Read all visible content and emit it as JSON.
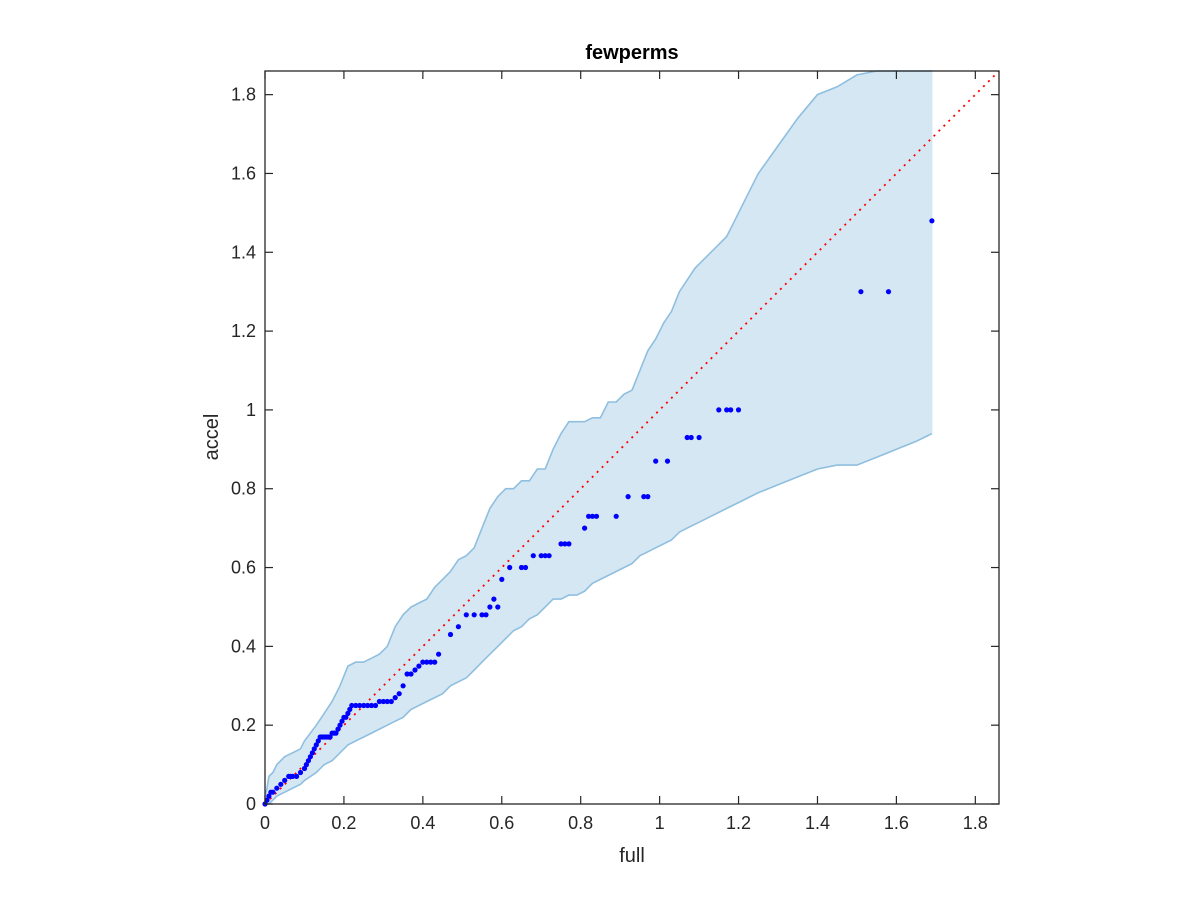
{
  "chart_data": {
    "type": "scatter",
    "title": "fewperms",
    "xlabel": "full",
    "ylabel": "accel",
    "xlim": [
      0,
      1.86
    ],
    "ylim": [
      0,
      1.86
    ],
    "xticks": [
      "0",
      "0.2",
      "0.4",
      "0.6",
      "0.8",
      "1",
      "1.2",
      "1.4",
      "1.6",
      "1.8"
    ],
    "yticks": [
      "0",
      "0.2",
      "0.4",
      "0.6",
      "0.8",
      "1",
      "1.2",
      "1.4",
      "1.6",
      "1.8"
    ],
    "xtick_values": [
      0,
      0.2,
      0.4,
      0.6,
      0.8,
      1.0,
      1.2,
      1.4,
      1.6,
      1.8
    ],
    "ytick_values": [
      0,
      0.2,
      0.4,
      0.6,
      0.8,
      1.0,
      1.2,
      1.4,
      1.6,
      1.8
    ],
    "grid": false,
    "colors": {
      "points": "#0000ff",
      "reference_line": "#ff0000",
      "band_fill": "#d6e7f4",
      "band_edge": "#8fbfdf",
      "axes": "#262626"
    },
    "reference_line": {
      "x": [
        0,
        1.86
      ],
      "y": [
        0,
        1.86
      ]
    },
    "band": {
      "x": [
        0,
        0.005,
        0.01,
        0.02,
        0.03,
        0.05,
        0.07,
        0.09,
        0.1,
        0.13,
        0.15,
        0.17,
        0.19,
        0.21,
        0.23,
        0.25,
        0.27,
        0.29,
        0.31,
        0.33,
        0.35,
        0.37,
        0.39,
        0.41,
        0.43,
        0.45,
        0.47,
        0.49,
        0.51,
        0.53,
        0.55,
        0.57,
        0.59,
        0.61,
        0.63,
        0.65,
        0.67,
        0.69,
        0.71,
        0.73,
        0.75,
        0.77,
        0.79,
        0.81,
        0.83,
        0.85,
        0.87,
        0.89,
        0.91,
        0.93,
        0.95,
        0.97,
        0.99,
        1.01,
        1.03,
        1.05,
        1.07,
        1.09,
        1.11,
        1.13,
        1.15,
        1.17,
        1.19,
        1.21,
        1.23,
        1.25,
        1.3,
        1.35,
        1.4,
        1.45,
        1.5,
        1.55,
        1.6,
        1.65,
        1.69
      ],
      "upper": [
        0.02,
        0.04,
        0.07,
        0.08,
        0.1,
        0.12,
        0.13,
        0.14,
        0.16,
        0.2,
        0.23,
        0.26,
        0.3,
        0.35,
        0.36,
        0.36,
        0.37,
        0.38,
        0.4,
        0.45,
        0.48,
        0.5,
        0.51,
        0.52,
        0.55,
        0.57,
        0.59,
        0.62,
        0.63,
        0.65,
        0.7,
        0.75,
        0.78,
        0.8,
        0.8,
        0.82,
        0.82,
        0.85,
        0.85,
        0.9,
        0.94,
        0.97,
        0.97,
        0.97,
        0.98,
        0.98,
        1.02,
        1.02,
        1.04,
        1.05,
        1.1,
        1.15,
        1.18,
        1.22,
        1.25,
        1.3,
        1.33,
        1.36,
        1.38,
        1.4,
        1.42,
        1.44,
        1.48,
        1.52,
        1.56,
        1.6,
        1.67,
        1.74,
        1.8,
        1.82,
        1.85,
        1.86,
        1.86,
        1.86,
        1.86
      ],
      "lower": [
        0.0,
        0.0,
        0.0,
        0.01,
        0.02,
        0.03,
        0.04,
        0.05,
        0.06,
        0.08,
        0.1,
        0.11,
        0.13,
        0.15,
        0.16,
        0.17,
        0.18,
        0.19,
        0.2,
        0.21,
        0.22,
        0.24,
        0.25,
        0.26,
        0.27,
        0.28,
        0.3,
        0.31,
        0.32,
        0.34,
        0.36,
        0.38,
        0.4,
        0.42,
        0.44,
        0.45,
        0.47,
        0.48,
        0.5,
        0.52,
        0.52,
        0.53,
        0.53,
        0.54,
        0.56,
        0.57,
        0.58,
        0.59,
        0.6,
        0.61,
        0.63,
        0.64,
        0.65,
        0.66,
        0.67,
        0.69,
        0.7,
        0.71,
        0.72,
        0.73,
        0.74,
        0.75,
        0.76,
        0.77,
        0.78,
        0.79,
        0.81,
        0.83,
        0.85,
        0.86,
        0.86,
        0.88,
        0.9,
        0.92,
        0.94
      ]
    },
    "points": {
      "x": [
        0.0,
        0.005,
        0.01,
        0.015,
        0.02,
        0.03,
        0.04,
        0.05,
        0.06,
        0.065,
        0.07,
        0.08,
        0.09,
        0.1,
        0.105,
        0.11,
        0.115,
        0.12,
        0.125,
        0.13,
        0.135,
        0.14,
        0.145,
        0.15,
        0.155,
        0.16,
        0.165,
        0.17,
        0.175,
        0.18,
        0.185,
        0.19,
        0.195,
        0.2,
        0.205,
        0.21,
        0.215,
        0.22,
        0.23,
        0.24,
        0.25,
        0.26,
        0.27,
        0.28,
        0.29,
        0.3,
        0.31,
        0.32,
        0.33,
        0.34,
        0.35,
        0.36,
        0.37,
        0.38,
        0.39,
        0.4,
        0.41,
        0.42,
        0.43,
        0.44,
        0.47,
        0.49,
        0.51,
        0.53,
        0.55,
        0.56,
        0.57,
        0.58,
        0.59,
        0.6,
        0.62,
        0.65,
        0.66,
        0.68,
        0.7,
        0.71,
        0.72,
        0.75,
        0.76,
        0.77,
        0.81,
        0.82,
        0.83,
        0.84,
        0.89,
        0.92,
        0.96,
        0.97,
        0.99,
        1.02,
        1.07,
        1.08,
        1.1,
        1.15,
        1.17,
        1.18,
        1.2,
        1.51,
        1.58,
        1.69
      ],
      "y": [
        0.0,
        0.01,
        0.02,
        0.03,
        0.03,
        0.04,
        0.05,
        0.06,
        0.07,
        0.07,
        0.07,
        0.07,
        0.08,
        0.09,
        0.1,
        0.11,
        0.12,
        0.13,
        0.14,
        0.15,
        0.16,
        0.17,
        0.17,
        0.17,
        0.17,
        0.17,
        0.17,
        0.18,
        0.18,
        0.18,
        0.19,
        0.2,
        0.21,
        0.22,
        0.22,
        0.23,
        0.24,
        0.25,
        0.25,
        0.25,
        0.25,
        0.25,
        0.25,
        0.25,
        0.26,
        0.26,
        0.26,
        0.26,
        0.27,
        0.28,
        0.3,
        0.33,
        0.33,
        0.34,
        0.35,
        0.36,
        0.36,
        0.36,
        0.36,
        0.38,
        0.43,
        0.45,
        0.48,
        0.48,
        0.48,
        0.48,
        0.5,
        0.52,
        0.5,
        0.57,
        0.6,
        0.6,
        0.6,
        0.63,
        0.63,
        0.63,
        0.63,
        0.66,
        0.66,
        0.66,
        0.7,
        0.73,
        0.73,
        0.73,
        0.73,
        0.78,
        0.78,
        0.78,
        0.87,
        0.87,
        0.93,
        0.93,
        0.93,
        1.0,
        1.0,
        1.0,
        1.0,
        1.3,
        1.3,
        1.48
      ]
    }
  }
}
